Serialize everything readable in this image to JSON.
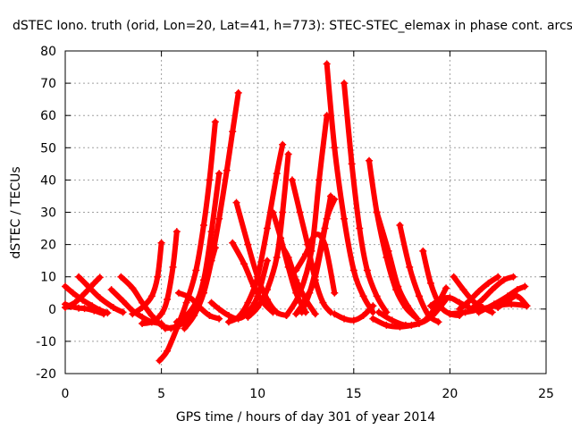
{
  "chart_data": {
    "type": "scatter",
    "title": "dSTEC Iono. truth (orid, Lon=20, Lat=41, h=773): STEC-STEC_elemax in phase cont. arcs",
    "xlabel": "GPS time / hours of day 301 of year 2014",
    "ylabel": "dSTEC  / TECUs",
    "xlim": [
      0,
      25
    ],
    "ylim": [
      -20,
      80
    ],
    "xticks": [
      0,
      5,
      10,
      15,
      20,
      25
    ],
    "yticks": [
      -20,
      -10,
      0,
      10,
      20,
      30,
      40,
      50,
      60,
      70,
      80
    ],
    "grid": true,
    "marker": "plus",
    "colors": {
      "series": "#ff0000"
    },
    "series": [
      {
        "x": [
          0.0,
          0.3,
          0.7,
          1.0,
          1.5,
          2.0
        ],
        "y": [
          1.5,
          0.8,
          0.3,
          0.2,
          -0.5,
          -1.5
        ]
      },
      {
        "x": [
          0.0,
          0.4,
          0.9,
          1.4,
          1.8,
          2.2
        ],
        "y": [
          7.0,
          5.0,
          2.8,
          1.0,
          -0.3,
          -1.2
        ]
      },
      {
        "x": [
          0.0,
          0.5,
          1.0,
          1.5,
          1.8
        ],
        "y": [
          0.5,
          2.0,
          4.8,
          8.0,
          9.8
        ]
      },
      {
        "x": [
          0.7,
          1.2,
          1.8,
          2.5,
          3.0
        ],
        "y": [
          10.0,
          7.0,
          3.5,
          0.5,
          -1.0
        ]
      },
      {
        "x": [
          2.4,
          3.0,
          3.5,
          4.0,
          4.5,
          5.0
        ],
        "y": [
          6.0,
          2.5,
          -0.5,
          -2.5,
          -4.0,
          -4.5
        ]
      },
      {
        "x": [
          2.9,
          3.5,
          4.0,
          4.5,
          5.0,
          5.5
        ],
        "y": [
          10.0,
          6.5,
          2.0,
          -2.0,
          -5.0,
          -6.0
        ]
      },
      {
        "x": [
          3.5,
          4.0,
          4.5,
          4.8,
          5.0
        ],
        "y": [
          -1.5,
          0.5,
          4.0,
          10.0,
          20.5
        ]
      },
      {
        "x": [
          4.0,
          4.5,
          5.0,
          5.3,
          5.6,
          5.8
        ],
        "y": [
          -4.5,
          -4.0,
          -1.5,
          3.0,
          13.0,
          24.0
        ]
      },
      {
        "x": [
          4.9,
          5.3,
          5.8,
          6.3,
          6.8,
          7.2,
          7.5,
          7.8
        ],
        "y": [
          -16.0,
          -13.0,
          -6.0,
          2.0,
          12.0,
          26.0,
          40.0,
          58.0
        ]
      },
      {
        "x": [
          5.2,
          5.7,
          6.2,
          6.7,
          7.2,
          7.6,
          8.0
        ],
        "y": [
          -6.0,
          -5.5,
          -4.0,
          0.0,
          9.0,
          24.0,
          42.0
        ]
      },
      {
        "x": [
          5.8,
          6.3,
          6.8,
          7.3,
          7.8
        ],
        "y": [
          -4.0,
          -2.0,
          2.0,
          9.0,
          19.0
        ]
      },
      {
        "x": [
          6.2,
          6.7,
          7.2,
          7.6,
          8.0,
          8.4,
          8.7,
          9.0
        ],
        "y": [
          -6.0,
          -2.0,
          5.0,
          15.0,
          28.0,
          43.0,
          55.0,
          67.0
        ]
      },
      {
        "x": [
          5.9,
          6.5,
          7.0,
          7.5,
          8.0
        ],
        "y": [
          5.0,
          3.5,
          0.5,
          -2.0,
          -3.0
        ]
      },
      {
        "x": [
          7.6,
          8.0,
          8.5,
          9.0,
          9.5,
          10.0,
          10.5
        ],
        "y": [
          2.0,
          0.0,
          -2.0,
          -3.0,
          -1.0,
          4.0,
          15.0
        ]
      },
      {
        "x": [
          8.5,
          9.0,
          9.5,
          10.0,
          10.5,
          11.0,
          11.3
        ],
        "y": [
          -4.0,
          -2.5,
          2.0,
          10.0,
          25.0,
          42.0,
          51.0
        ]
      },
      {
        "x": [
          8.7,
          9.3,
          9.8,
          10.3,
          10.8
        ],
        "y": [
          20.5,
          14.0,
          7.0,
          2.0,
          -1.0
        ]
      },
      {
        "x": [
          8.9,
          9.5,
          10.0,
          10.5,
          11.0,
          11.5
        ],
        "y": [
          33.0,
          20.0,
          10.0,
          3.0,
          -1.0,
          -2.0
        ]
      },
      {
        "x": [
          9.5,
          10.0,
          10.5,
          11.0,
          11.3,
          11.6
        ],
        "y": [
          -2.5,
          0.5,
          6.0,
          16.0,
          30.0,
          48.0
        ]
      },
      {
        "x": [
          10.8,
          11.2,
          11.6,
          12.0,
          12.5
        ],
        "y": [
          30.0,
          22.0,
          13.0,
          5.0,
          -1.0
        ]
      },
      {
        "x": [
          11.2,
          11.6,
          12.0,
          12.5,
          13.0
        ],
        "y": [
          20.0,
          16.0,
          9.0,
          3.0,
          -1.5
        ]
      },
      {
        "x": [
          11.8,
          12.2,
          12.6,
          13.0,
          13.4,
          13.8
        ],
        "y": [
          40.0,
          30.0,
          20.0,
          9.0,
          2.0,
          -1.0
        ]
      },
      {
        "x": [
          12.0,
          12.5,
          13.0,
          13.5,
          14.0
        ],
        "y": [
          12.0,
          17.0,
          23.0,
          20.0,
          5.0
        ]
      },
      {
        "x": [
          12.3,
          12.7,
          13.1,
          13.6,
          14.0
        ],
        "y": [
          -1.0,
          5.0,
          14.0,
          28.0,
          34.0
        ]
      },
      {
        "x": [
          12.0,
          12.5,
          13.0,
          13.5,
          13.8
        ],
        "y": [
          -1.5,
          3.0,
          10.0,
          25.0,
          35.0
        ]
      },
      {
        "x": [
          11.5,
          12.2,
          12.8,
          13.2,
          13.6
        ],
        "y": [
          -2.0,
          5.0,
          18.0,
          40.0,
          60.0
        ]
      },
      {
        "x": [
          13.6,
          14.0,
          14.5,
          15.0,
          15.5,
          16.0
        ],
        "y": [
          76.0,
          50.0,
          28.0,
          12.0,
          4.0,
          -1.0
        ]
      },
      {
        "x": [
          14.5,
          14.9,
          15.3,
          15.7,
          16.2,
          16.7
        ],
        "y": [
          70.0,
          45.0,
          25.0,
          12.0,
          4.0,
          -1.0
        ]
      },
      {
        "x": [
          14.0,
          14.5,
          15.0,
          15.5,
          16.0
        ],
        "y": [
          -1.5,
          -3.0,
          -3.5,
          -2.0,
          1.0
        ]
      },
      {
        "x": [
          15.8,
          16.2,
          16.7,
          17.2,
          17.7,
          18.2
        ],
        "y": [
          46.0,
          30.0,
          16.0,
          6.0,
          0.5,
          -2.5
        ]
      },
      {
        "x": [
          16.2,
          16.8,
          17.3,
          17.8,
          18.3
        ],
        "y": [
          30.0,
          18.0,
          7.0,
          1.0,
          -3.0
        ]
      },
      {
        "x": [
          17.4,
          17.9,
          18.4,
          18.9,
          19.4
        ],
        "y": [
          26.0,
          13.0,
          4.0,
          -2.0,
          -4.0
        ]
      },
      {
        "x": [
          18.6,
          19.0,
          19.5,
          20.0,
          20.5
        ],
        "y": [
          18.0,
          8.0,
          1.0,
          -1.5,
          -2.0
        ]
      },
      {
        "x": [
          16.0,
          16.7,
          17.4,
          18.0,
          18.7,
          19.3,
          19.8
        ],
        "y": [
          -3.0,
          -5.0,
          -5.5,
          -5.0,
          -3.5,
          1.0,
          6.5
        ]
      },
      {
        "x": [
          16.3,
          17.0,
          17.7,
          18.4,
          19.1,
          19.8
        ],
        "y": [
          -1.0,
          -3.5,
          -5.0,
          -4.5,
          -2.0,
          3.0
        ]
      },
      {
        "x": [
          19.0,
          19.5,
          20.0,
          20.5,
          21.0
        ],
        "y": [
          1.0,
          3.0,
          3.5,
          2.0,
          0.5
        ]
      },
      {
        "x": [
          20.2,
          20.7,
          21.2,
          21.7,
          22.2
        ],
        "y": [
          10.0,
          6.0,
          2.5,
          0.5,
          -1.0
        ]
      },
      {
        "x": [
          20.5,
          21.0,
          21.5,
          22.0,
          22.5
        ],
        "y": [
          0.0,
          2.5,
          5.5,
          8.0,
          10.0
        ]
      },
      {
        "x": [
          21.2,
          21.7,
          22.2,
          22.8,
          23.3
        ],
        "y": [
          0.5,
          3.0,
          6.0,
          9.0,
          10.0
        ]
      },
      {
        "x": [
          20.0,
          20.8,
          21.6,
          22.4,
          23.2,
          24.0
        ],
        "y": [
          -1.5,
          -1.0,
          0.0,
          1.0,
          1.5,
          1.0
        ]
      },
      {
        "x": [
          21.5,
          22.3,
          23.0,
          23.5,
          23.9
        ],
        "y": [
          -1.0,
          1.5,
          4.0,
          6.0,
          7.0
        ]
      },
      {
        "x": [
          22.5,
          23.0,
          23.5,
          24.0
        ],
        "y": [
          0.5,
          2.5,
          4.0,
          1.0
        ]
      }
    ]
  }
}
